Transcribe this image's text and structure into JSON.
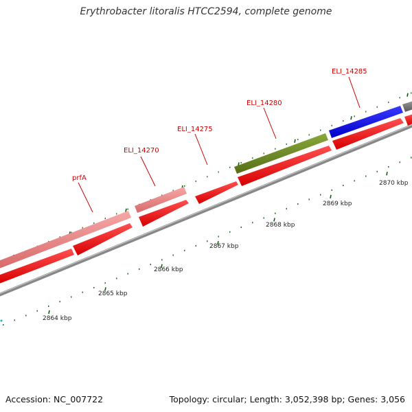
{
  "header": {
    "title": "Erythrobacter litoralis HTCC2594, complete genome"
  },
  "footer": {
    "accession": "Accession: NC_007722",
    "summary": "Topology: circular; Length: 3,052,398 bp; Genes: 3,056"
  },
  "colors": {
    "cds": "#ff0000",
    "gene_pink": "#f08080",
    "gene_green": "#6b8e23",
    "gene_blue": "#0000ee",
    "gene_gray": "#777777",
    "backbone": "#888888",
    "label": "#cc0000",
    "tick_green": "#006400"
  },
  "gene_labels": [
    {
      "text": "prfA"
    },
    {
      "text": "ELI_14270"
    },
    {
      "text": "ELI_14275"
    },
    {
      "text": "ELI_14280"
    },
    {
      "text": "ELI_14285"
    }
  ],
  "kbp_labels": [
    {
      "text": "2864 kbp",
      "kbp": 2864
    },
    {
      "text": "2865 kbp",
      "kbp": 2865
    },
    {
      "text": "2866 kbp",
      "kbp": 2866
    },
    {
      "text": "2867 kbp",
      "kbp": 2867
    },
    {
      "text": "2868 kbp",
      "kbp": 2868
    },
    {
      "text": "2869 kbp",
      "kbp": 2869
    },
    {
      "text": "2870 kbp",
      "kbp": 2870
    }
  ]
}
